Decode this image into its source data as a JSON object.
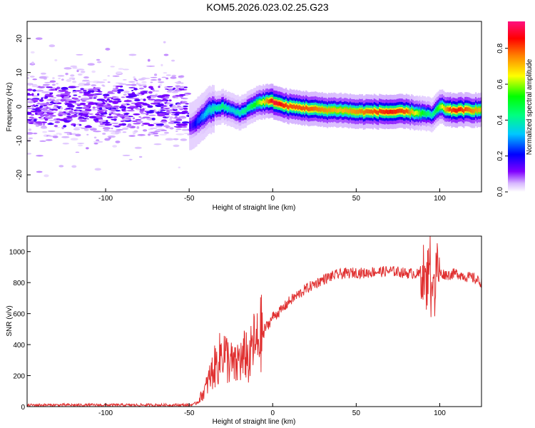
{
  "title": "KOM5.2026.023.02.25.G23",
  "colors": {
    "snr_line": "#e03030",
    "axis": "#000000",
    "colormap": [
      "#ffffff",
      "#c8a0ff",
      "#8000ff",
      "#0000ff",
      "#00ffff",
      "#00ff00",
      "#ffff00",
      "#ff8000",
      "#ff0000",
      "#ff1080"
    ]
  },
  "chart_data": [
    {
      "type": "heatmap",
      "title": "KOM5.2026.023.02.25.G23",
      "xlabel": "Height of straight line (km)",
      "ylabel": "Frequency (Hz)",
      "xlim": [
        -147,
        125
      ],
      "ylim": [
        -25,
        25
      ],
      "xticks": [
        -100,
        -50,
        0,
        50,
        100
      ],
      "yticks": [
        -20,
        -10,
        0,
        10,
        20
      ],
      "grid": false,
      "colorbar": {
        "label": "Normalized spectral amplitude",
        "range": [
          0,
          0.95
        ],
        "ticks": [
          0.0,
          0.2,
          0.4,
          0.6,
          0.8
        ]
      },
      "noise_region": {
        "x": [
          -147,
          -50
        ],
        "freq_center": 0,
        "freq_spread": 10,
        "amplitude": 0.1
      },
      "signal_ridge": {
        "x": [
          -50,
          -47,
          -45,
          -42,
          -40,
          -35,
          -30,
          -25,
          -20,
          -15,
          -10,
          -5,
          0,
          5,
          10,
          20,
          30,
          40,
          50,
          60,
          70,
          80,
          90,
          95,
          100,
          105,
          110,
          120,
          125
        ],
        "frequency": [
          -6,
          -5,
          -4,
          -3,
          -1.5,
          -0.5,
          0,
          -1,
          -2,
          -0.5,
          1,
          1.5,
          1.5,
          0.5,
          0,
          -0.5,
          -1,
          -1,
          -1.5,
          -1.5,
          -1.5,
          -1.5,
          -2,
          -2.5,
          0,
          -1,
          -1,
          -1,
          -1
        ],
        "amplitude": [
          0.15,
          0.2,
          0.25,
          0.3,
          0.35,
          0.4,
          0.45,
          0.35,
          0.4,
          0.45,
          0.55,
          0.7,
          0.9,
          0.85,
          0.8,
          0.8,
          0.75,
          0.7,
          0.75,
          0.8,
          0.85,
          0.8,
          0.5,
          0.4,
          0.6,
          0.8,
          0.85,
          0.75,
          0.7
        ]
      }
    },
    {
      "type": "line",
      "xlabel": "Height of straight line (km)",
      "ylabel": "SNR (v/v)",
      "xlim": [
        -147,
        125
      ],
      "ylim": [
        0,
        1100
      ],
      "xticks": [
        -100,
        -50,
        0,
        50,
        100
      ],
      "yticks": [
        0,
        200,
        400,
        600,
        800,
        1000
      ],
      "grid": false,
      "series": [
        {
          "x": [
            -147,
            -120,
            -100,
            -80,
            -60,
            -50,
            -47,
            -45,
            -42,
            -40,
            -38,
            -35,
            -32,
            -30,
            -28,
            -25,
            -22,
            -20,
            -18,
            -16,
            -14,
            -12,
            -10,
            -8,
            -5,
            -2,
            0,
            5,
            10,
            15,
            20,
            25,
            30,
            35,
            40,
            45,
            50,
            55,
            60,
            65,
            70,
            75,
            80,
            85,
            88,
            90,
            92,
            94,
            95,
            96,
            97,
            98,
            100,
            105,
            110,
            115,
            120,
            125
          ],
          "y": [
            10,
            10,
            10,
            10,
            10,
            10,
            15,
            30,
            80,
            120,
            180,
            250,
            300,
            380,
            320,
            280,
            250,
            320,
            280,
            360,
            260,
            420,
            380,
            450,
            500,
            540,
            580,
            620,
            680,
            720,
            760,
            790,
            820,
            840,
            855,
            860,
            865,
            860,
            870,
            870,
            875,
            870,
            860,
            860,
            850,
            880,
            750,
            1050,
            600,
            980,
            700,
            920,
            860,
            850,
            860,
            840,
            830,
            800
          ]
        }
      ]
    }
  ]
}
